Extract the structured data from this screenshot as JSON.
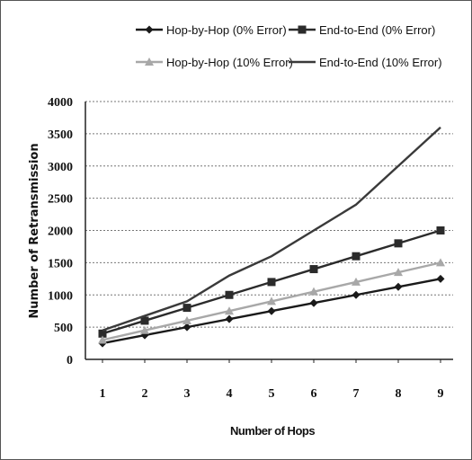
{
  "chart_data": {
    "type": "line",
    "xlabel": "Number of Hops",
    "ylabel": "Number of Retransmission",
    "categories": [
      "1",
      "2",
      "3",
      "4",
      "5",
      "6",
      "7",
      "8",
      "9"
    ],
    "ylim": [
      0,
      4000
    ],
    "yticks": [
      "0",
      "500",
      "1000",
      "1500",
      "2000",
      "2500",
      "3000",
      "3500",
      "4000"
    ],
    "grid": "horizontal",
    "legend_position": "top",
    "series": [
      {
        "name": "Hop-by-Hop (0% Error)",
        "marker": "diamond",
        "color": "#1a1a1a",
        "values": [
          250,
          375,
          500,
          625,
          750,
          875,
          1000,
          1125,
          1250
        ]
      },
      {
        "name": "End-to-End (0% Error)",
        "marker": "square",
        "color": "#2b2b2b",
        "values": [
          400,
          600,
          800,
          1000,
          1200,
          1400,
          1600,
          1800,
          2000
        ]
      },
      {
        "name": "Hop-by-Hop (10% Error)",
        "marker": "triangle",
        "color": "#a8a8a8",
        "values": [
          300,
          450,
          600,
          750,
          900,
          1050,
          1200,
          1350,
          1500
        ]
      },
      {
        "name": "End-to-End (10% Error)",
        "marker": "none",
        "color": "#3a3a3a",
        "values": [
          450,
          675,
          900,
          1300,
          1600,
          2000,
          2400,
          3000,
          3600
        ]
      }
    ]
  }
}
